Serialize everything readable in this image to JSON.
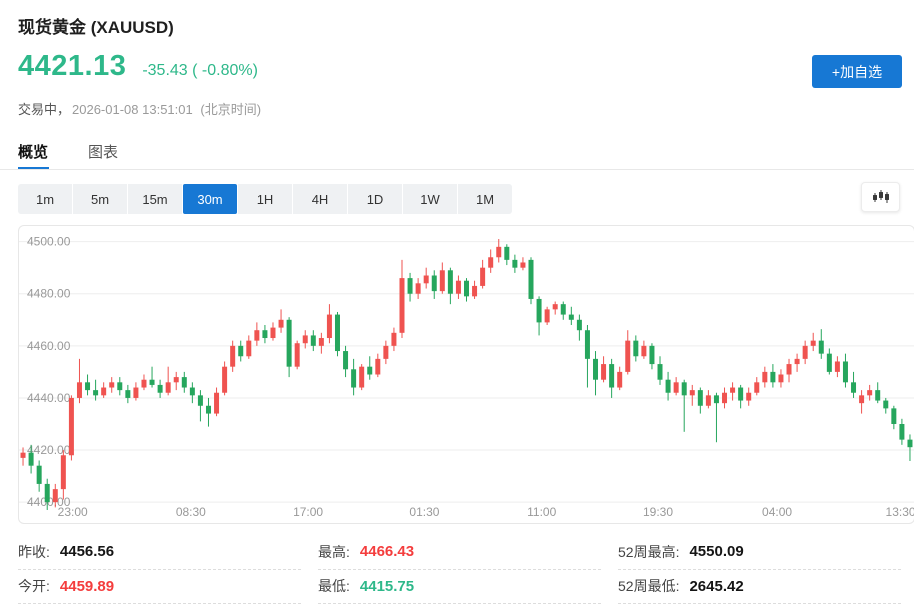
{
  "colors": {
    "accent_blue": "#1778d4",
    "price_green": "#2eb88a",
    "stat_red": "#f43d3d",
    "stat_green": "#2eb88a",
    "candle_up_red": "#ef5350",
    "candle_down_green": "#26a65d",
    "grid_line": "#eeeeee",
    "axis_text": "#999999"
  },
  "header": {
    "title": "现货黄金 (XAUUSD)",
    "price": "4421.13",
    "change": "-35.43 ( -0.80%)",
    "status": "交易中，",
    "timestamp": "2026-01-08 13:51:01",
    "timezone": "(北京时间)",
    "add_button": "+加自选"
  },
  "tabs": [
    {
      "label": "概览",
      "active": true
    },
    {
      "label": "图表",
      "active": false
    }
  ],
  "toolbar": {
    "ranges": [
      "1m",
      "5m",
      "15m",
      "30m",
      "1H",
      "4H",
      "1D",
      "1W",
      "1M"
    ],
    "active_range": "30m",
    "chart_type_icon": "candlestick-chart-icon"
  },
  "chart_data": {
    "type": "candlestick",
    "note": "red = up candle, green = down candle (CN convention); ohlc = [open,high,low,close]",
    "ylim": [
      4392,
      4506
    ],
    "grid": true,
    "y_ticks": [
      {
        "value": 4400,
        "label": "4400.00"
      },
      {
        "value": 4420,
        "label": "4420.00"
      },
      {
        "value": 4440,
        "label": "4440.00"
      },
      {
        "value": 4460,
        "label": "4460.00"
      },
      {
        "value": 4480,
        "label": "4480.00"
      },
      {
        "value": 4500,
        "label": "4500.00"
      }
    ],
    "x_ticks": [
      {
        "label": "23:00",
        "pos": 0.06
      },
      {
        "label": "08:30",
        "pos": 0.192
      },
      {
        "label": "17:00",
        "pos": 0.323
      },
      {
        "label": "01:30",
        "pos": 0.453
      },
      {
        "label": "11:00",
        "pos": 0.584
      },
      {
        "label": "19:30",
        "pos": 0.714
      },
      {
        "label": "04:00",
        "pos": 0.847
      },
      {
        "label": "13:30",
        "pos": 0.985
      }
    ],
    "ohlc": [
      [
        4417,
        4421,
        4414,
        4419
      ],
      [
        4419,
        4422,
        4411,
        4414
      ],
      [
        4414,
        4416,
        4404,
        4407
      ],
      [
        4407,
        4409,
        4397,
        4400
      ],
      [
        4400,
        4407,
        4398,
        4405
      ],
      [
        4405,
        4420,
        4401,
        4418
      ],
      [
        4418,
        4441,
        4416,
        4440
      ],
      [
        4440,
        4455,
        4438,
        4446
      ],
      [
        4446,
        4449,
        4441,
        4443
      ],
      [
        4443,
        4447,
        4439,
        4441
      ],
      [
        4441,
        4446,
        4440,
        4444
      ],
      [
        4444,
        4448,
        4442,
        4446
      ],
      [
        4446,
        4448,
        4441,
        4443
      ],
      [
        4443,
        4445,
        4438,
        4440
      ],
      [
        4440,
        4446,
        4439,
        4444
      ],
      [
        4444,
        4449,
        4443,
        4447
      ],
      [
        4447,
        4452,
        4444,
        4445
      ],
      [
        4445,
        4447,
        4440,
        4442
      ],
      [
        4442,
        4452,
        4441,
        4446
      ],
      [
        4446,
        4450,
        4443,
        4448
      ],
      [
        4448,
        4450,
        4442,
        4444
      ],
      [
        4444,
        4446,
        4438,
        4441
      ],
      [
        4441,
        4443,
        4431,
        4437
      ],
      [
        4437,
        4440,
        4429,
        4434
      ],
      [
        4434,
        4444,
        4433,
        4442
      ],
      [
        4442,
        4454,
        4441,
        4452
      ],
      [
        4452,
        4462,
        4450,
        4460
      ],
      [
        4460,
        4462,
        4454,
        4456
      ],
      [
        4456,
        4464,
        4455,
        4462
      ],
      [
        4462,
        4469,
        4460,
        4466
      ],
      [
        4466,
        4468,
        4461,
        4463
      ],
      [
        4463,
        4469,
        4462,
        4467
      ],
      [
        4467,
        4474,
        4465,
        4470
      ],
      [
        4470,
        4471,
        4448,
        4452
      ],
      [
        4452,
        4462,
        4451,
        4461
      ],
      [
        4461,
        4466,
        4459,
        4464
      ],
      [
        4464,
        4466,
        4458,
        4460
      ],
      [
        4460,
        4465,
        4457,
        4463
      ],
      [
        4463,
        4476,
        4461,
        4472
      ],
      [
        4472,
        4473,
        4456,
        4458
      ],
      [
        4458,
        4460,
        4448,
        4451
      ],
      [
        4451,
        4455,
        4441,
        4444
      ],
      [
        4444,
        4453,
        4443,
        4452
      ],
      [
        4452,
        4456,
        4447,
        4449
      ],
      [
        4449,
        4457,
        4448,
        4455
      ],
      [
        4455,
        4462,
        4453,
        4460
      ],
      [
        4460,
        4467,
        4458,
        4465
      ],
      [
        4465,
        4493,
        4463,
        4486
      ],
      [
        4486,
        4488,
        4477,
        4480
      ],
      [
        4480,
        4486,
        4478,
        4484
      ],
      [
        4484,
        4490,
        4482,
        4487
      ],
      [
        4487,
        4489,
        4478,
        4481
      ],
      [
        4481,
        4492,
        4480,
        4489
      ],
      [
        4489,
        4490,
        4476,
        4480
      ],
      [
        4480,
        4487,
        4478,
        4485
      ],
      [
        4485,
        4486,
        4477,
        4479
      ],
      [
        4479,
        4485,
        4478,
        4483
      ],
      [
        4483,
        4493,
        4482,
        4490
      ],
      [
        4490,
        4497,
        4488,
        4494
      ],
      [
        4494,
        4501,
        4492,
        4498
      ],
      [
        4498,
        4499,
        4491,
        4493
      ],
      [
        4493,
        4495,
        4488,
        4490
      ],
      [
        4490,
        4494,
        4489,
        4492
      ],
      [
        4493,
        4494,
        4476,
        4478
      ],
      [
        4478,
        4479,
        4464,
        4469
      ],
      [
        4469,
        4475,
        4468,
        4474
      ],
      [
        4474,
        4477,
        4472,
        4476
      ],
      [
        4476,
        4477,
        4470,
        4472
      ],
      [
        4472,
        4475,
        4468,
        4470
      ],
      [
        4470,
        4472,
        4462,
        4466
      ],
      [
        4466,
        4468,
        4444,
        4455
      ],
      [
        4455,
        4458,
        4441,
        4447
      ],
      [
        4447,
        4456,
        4446,
        4453
      ],
      [
        4453,
        4455,
        4440,
        4444
      ],
      [
        4444,
        4452,
        4443,
        4450
      ],
      [
        4450,
        4466,
        4449,
        4462
      ],
      [
        4462,
        4464,
        4454,
        4456
      ],
      [
        4456,
        4462,
        4455,
        4460
      ],
      [
        4460,
        4461,
        4451,
        4453
      ],
      [
        4453,
        4456,
        4445,
        4447
      ],
      [
        4447,
        4450,
        4439,
        4442
      ],
      [
        4442,
        4448,
        4441,
        4446
      ],
      [
        4446,
        4447,
        4427,
        4441
      ],
      [
        4441,
        4445,
        4437,
        4443
      ],
      [
        4443,
        4444,
        4434,
        4437
      ],
      [
        4437,
        4443,
        4436,
        4441
      ],
      [
        4441,
        4442,
        4423,
        4438
      ],
      [
        4438,
        4444,
        4436,
        4442
      ],
      [
        4442,
        4446,
        4439,
        4444
      ],
      [
        4444,
        4445,
        4436,
        4439
      ],
      [
        4439,
        4444,
        4437,
        4442
      ],
      [
        4442,
        4448,
        4441,
        4446
      ],
      [
        4446,
        4452,
        4444,
        4450
      ],
      [
        4450,
        4453,
        4444,
        4446
      ],
      [
        4446,
        4451,
        4444,
        4449
      ],
      [
        4449,
        4455,
        4446,
        4453
      ],
      [
        4453,
        4457,
        4450,
        4455
      ],
      [
        4455,
        4462,
        4453,
        4460
      ],
      [
        4460,
        4465,
        4458,
        4462
      ],
      [
        4462,
        4466.4,
        4455,
        4457
      ],
      [
        4457,
        4459,
        4449,
        4450
      ],
      [
        4450,
        4456,
        4448,
        4454
      ],
      [
        4454,
        4457,
        4444,
        4446
      ],
      [
        4446,
        4450,
        4440,
        4442
      ],
      [
        4438,
        4443,
        4434,
        4441
      ],
      [
        4441,
        4445,
        4439,
        4443
      ],
      [
        4443,
        4446,
        4438,
        4439
      ],
      [
        4439,
        4440,
        4434,
        4436
      ],
      [
        4436,
        4437,
        4428,
        4430
      ],
      [
        4430,
        4432,
        4422,
        4424
      ],
      [
        4424,
        4426,
        4415.8,
        4421.1
      ]
    ]
  },
  "stats": [
    {
      "label": "昨收:",
      "value": "4456.56",
      "color": "default"
    },
    {
      "label": "最高:",
      "value": "4466.43",
      "color": "red"
    },
    {
      "label": "52周最高:",
      "value": "4550.09",
      "color": "default"
    },
    {
      "label": "今开:",
      "value": "4459.89",
      "color": "red"
    },
    {
      "label": "最低:",
      "value": "4415.75",
      "color": "green"
    },
    {
      "label": "52周最低:",
      "value": "2645.42",
      "color": "default"
    }
  ]
}
